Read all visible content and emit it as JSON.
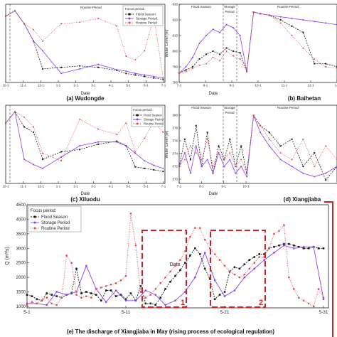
{
  "colors": {
    "flood": "#1a1a1a",
    "storage": "#8a3df0",
    "routine": "#e04a4a",
    "box": "#d42020",
    "axis": "#222222"
  },
  "legend_title": "Focus period:",
  "legend_items": [
    "Flood Season",
    "Storage Period",
    "Routine Period"
  ],
  "chart_data": [
    {
      "type": "line",
      "caption": "(a) Wudongde",
      "xlabel": "Date",
      "ylabel": "",
      "period_labels": [
        "Routine Period"
      ],
      "x_ticks": [
        "10-1",
        "11-1",
        "12-1",
        "1-1",
        "2-1",
        "3-1",
        "4-1",
        "5-1",
        "6-1",
        "7-1"
      ],
      "series": [
        {
          "name": "Flood Season",
          "x": [
            10.0,
            10.5,
            11.0,
            11.5,
            12.0,
            13.0,
            14.0,
            15.0,
            16.0,
            16.5,
            17.0,
            17.5,
            18.0,
            18.5
          ],
          "y": [
            0.88,
            0.95,
            0.78,
            0.55,
            0.18,
            0.2,
            0.22,
            0.2,
            0.16,
            0.12,
            0.1,
            0.08,
            0.06,
            0.04
          ]
        },
        {
          "name": "Storage Period",
          "x": [
            10.0,
            10.5,
            11.0,
            11.5,
            12.0,
            13.0,
            14.0,
            15.0,
            16.0,
            16.5,
            17.0,
            17.5,
            18.0,
            18.5
          ],
          "y": [
            0.88,
            0.95,
            0.78,
            0.55,
            0.42,
            0.12,
            0.18,
            0.24,
            0.17,
            0.15,
            0.12,
            0.1,
            0.08,
            0.06
          ]
        },
        {
          "name": "Routine Period",
          "x": [
            10.0,
            10.5,
            11.0,
            11.5,
            12.0,
            13.0,
            14.0,
            15.0,
            16.0,
            16.5,
            17.0,
            17.5,
            18.0,
            18.5
          ],
          "y": [
            0.88,
            0.95,
            0.78,
            0.7,
            0.55,
            0.78,
            0.8,
            0.85,
            0.75,
            0.35,
            0.3,
            0.42,
            0.88,
            0.06
          ]
        }
      ]
    },
    {
      "type": "line",
      "caption": "(b) Baihetan",
      "xlabel": "Date",
      "ylabel": "Water Level (m)",
      "period_labels": [
        "Flood Season",
        "Storage",
        "Period",
        "Routine Period"
      ],
      "y_ticks": [
        "780",
        "790",
        "800",
        "810",
        "820",
        "830"
      ],
      "ylim": [
        780,
        830
      ],
      "x_ticks": [
        "7-1",
        "8-1",
        "9-1",
        "10-1",
        "11-1",
        "12-1",
        "1-1"
      ],
      "series": [
        {
          "name": "Flood Season",
          "x": [
            0,
            0.3,
            0.6,
            0.9,
            1.2,
            1.5,
            1.8,
            2.1,
            2.4,
            2.7,
            3.0,
            3.3,
            3.6,
            4.0,
            4.5,
            5.0,
            5.5,
            6.0,
            6.5,
            7.0
          ],
          "y": [
            786,
            788,
            790,
            795,
            798,
            800,
            798,
            802,
            800,
            799,
            787,
            825,
            824,
            823,
            820,
            816,
            812,
            792,
            792,
            790
          ]
        },
        {
          "name": "Storage Period",
          "x": [
            0,
            0.3,
            0.6,
            0.9,
            1.2,
            1.5,
            1.8,
            2.1,
            2.4,
            2.7,
            3.0,
            3.3,
            3.6,
            4.0,
            4.5,
            5.0,
            5.5,
            6.0,
            6.5,
            7.0
          ],
          "y": [
            786,
            790,
            796,
            805,
            810,
            814,
            812,
            817,
            815,
            810,
            787,
            825,
            824,
            823,
            822,
            821,
            820,
            819,
            818,
            817
          ]
        },
        {
          "name": "Routine Period",
          "x": [
            0,
            0.3,
            0.6,
            0.9,
            1.2,
            1.5,
            1.8,
            2.1,
            2.4,
            2.7,
            3.0,
            3.3,
            3.6,
            4.0,
            4.5,
            5.0,
            5.5,
            6.0,
            6.5,
            7.0
          ],
          "y": [
            786,
            787,
            789,
            791,
            792,
            796,
            794,
            800,
            797,
            795,
            787,
            825,
            824,
            823,
            818,
            810,
            802,
            795,
            790,
            789
          ]
        }
      ]
    },
    {
      "type": "line",
      "caption": "(c) Xiluodu",
      "xlabel": "Date",
      "ylabel": "",
      "period_labels": [],
      "x_ticks": [
        "10-1",
        "11-1",
        "12-1",
        "1-1",
        "2-1",
        "3-1",
        "4-1",
        "5-1",
        "6-1",
        "7-1"
      ],
      "series": [
        {
          "name": "Flood Season",
          "x": [
            10.0,
            10.5,
            11.0,
            11.5,
            12.0,
            13.0,
            14.0,
            15.0,
            16.0,
            16.5,
            17.0,
            17.5,
            18.0,
            18.5
          ],
          "y": [
            0.8,
            0.95,
            0.75,
            0.68,
            0.32,
            0.42,
            0.45,
            0.52,
            0.56,
            0.5,
            0.22,
            0.2,
            0.18,
            0.16
          ]
        },
        {
          "name": "Storage Period",
          "x": [
            10.0,
            10.5,
            11.0,
            11.5,
            12.0,
            13.0,
            14.0,
            15.0,
            16.0,
            16.5,
            17.0,
            17.5,
            18.0,
            18.5
          ],
          "y": [
            0.8,
            0.95,
            0.32,
            0.25,
            0.2,
            0.35,
            0.5,
            0.55,
            0.55,
            0.5,
            0.4,
            0.3,
            0.24,
            0.2
          ]
        },
        {
          "name": "Routine Period",
          "x": [
            10.0,
            10.5,
            11.0,
            11.5,
            12.0,
            13.0,
            14.0,
            15.0,
            16.0,
            16.5,
            17.0,
            17.5,
            18.0,
            18.5
          ],
          "y": [
            0.8,
            0.95,
            0.88,
            0.75,
            0.4,
            0.3,
            0.85,
            0.72,
            0.65,
            0.8,
            0.42,
            0.6,
            0.82,
            0.68
          ]
        }
      ]
    },
    {
      "type": "line",
      "caption": "(d) Xiangjiaba",
      "xlabel": "Date",
      "ylabel": "Water Level (m)",
      "period_labels": [
        "Flood Season",
        "Storage",
        "Period",
        "Routine Period"
      ],
      "y_ticks": [
        "370",
        "372",
        "374",
        "376",
        "378",
        "380"
      ],
      "ylim": [
        369.5,
        381
      ],
      "x_ticks": [
        "7-1",
        "8-1",
        "9-1",
        "10-1"
      ],
      "series": [
        {
          "name": "Flood Season",
          "x": [
            0,
            0.25,
            0.5,
            0.75,
            1.0,
            1.25,
            1.5,
            1.75,
            2.0,
            2.25,
            2.5,
            2.75,
            3.0,
            3.3,
            3.6,
            4.0,
            4.5,
            5.0,
            5.5,
            6.0,
            6.5,
            7.0
          ],
          "y": [
            372,
            376,
            373,
            378,
            372,
            377,
            371,
            375,
            373,
            376,
            372,
            375,
            371,
            379.5,
            378,
            377,
            375,
            376,
            372,
            374,
            370,
            372
          ]
        },
        {
          "name": "Storage Period",
          "x": [
            0,
            0.25,
            0.5,
            0.75,
            1.0,
            1.25,
            1.5,
            1.75,
            2.0,
            2.25,
            2.5,
            2.75,
            3.0,
            3.3,
            3.6,
            4.0,
            4.5,
            5.0,
            5.5,
            6.0,
            6.5,
            7.0
          ],
          "y": [
            372,
            374,
            371,
            375,
            372,
            373,
            371,
            374,
            372,
            373,
            371,
            372,
            370.5,
            379.5,
            377,
            375,
            373,
            372,
            371,
            370.5,
            371,
            372
          ]
        },
        {
          "name": "Routine Period",
          "x": [
            0,
            0.25,
            0.5,
            0.75,
            1.0,
            1.25,
            1.5,
            1.75,
            2.0,
            2.25,
            2.5,
            2.75,
            3.0,
            3.3,
            3.6,
            4.0,
            4.5,
            5.0,
            5.5,
            6.0,
            6.5,
            7.0
          ],
          "y": [
            372,
            373,
            375,
            374,
            373,
            376,
            372,
            374,
            373,
            374,
            372,
            373,
            371,
            379.5,
            378,
            376,
            374,
            373,
            376,
            372,
            375,
            373
          ]
        }
      ]
    },
    {
      "type": "line",
      "caption": "(e) The discharge of Xiangjiaba in May (rising process of ecological regulation)",
      "xlabel": "Date",
      "ylabel": "Q (m³/s)",
      "legend_title": "Focus period:",
      "ylim": [
        950,
        4500
      ],
      "y_ticks": [
        "1000",
        "1500",
        "2000",
        "2500",
        "3000",
        "3500",
        "4000",
        "4500"
      ],
      "x_ticks": [
        "5-1",
        "5-11",
        "5-21",
        "5-31"
      ],
      "box_labels": [
        "1",
        "2"
      ],
      "series": [
        {
          "name": "Flood Season",
          "x": [
            1,
            1.5,
            2,
            2.5,
            3,
            3.5,
            4,
            4.5,
            5,
            5.5,
            6,
            6.5,
            7,
            7.5,
            8,
            8.5,
            9,
            9.5,
            10,
            10.5,
            11,
            11.5,
            12,
            12.5,
            13,
            13.5,
            14,
            14.5,
            15,
            15.5,
            16,
            16.5,
            17,
            17.5,
            18,
            18.5,
            19,
            19.5,
            20,
            20.5,
            21,
            21.5,
            22,
            22.5,
            23,
            23.5,
            24,
            24.5,
            25,
            25.5,
            26,
            26.5,
            27,
            27.5,
            28,
            28.5,
            29,
            29.5,
            30,
            30.5,
            31
          ],
          "y": [
            1400,
            1350,
            1250,
            1200,
            1450,
            1400,
            1350,
            1300,
            1400,
            1450,
            2300,
            1450,
            1500,
            1450,
            1400,
            1200,
            1550,
            1550,
            1350,
            1400,
            1250,
            1450,
            1200,
            1700,
            1100,
            1100,
            1050,
            1300,
            1600,
            1850,
            2050,
            2250,
            2500,
            2750,
            3000,
            2800,
            2300,
            1950,
            1250,
            1400,
            1500,
            2200,
            2350,
            2300,
            2450,
            2600,
            2700,
            2800,
            2800,
            3000,
            3050,
            3100,
            3150,
            3150,
            3100,
            3050,
            3000,
            3000,
            3050,
            3000,
            3000
          ]
        },
        {
          "name": "Storage Period",
          "x": [
            1,
            2,
            3,
            4,
            5,
            6,
            7,
            8,
            9,
            10,
            11,
            12,
            13,
            14,
            15,
            16,
            17,
            18,
            19,
            20,
            21,
            22,
            23,
            24,
            25,
            26,
            27,
            28,
            29,
            30,
            31
          ],
          "y": [
            1100,
            1100,
            1050,
            1500,
            1400,
            1500,
            2400,
            1600,
            1150,
            1550,
            1200,
            1200,
            1550,
            1400,
            1050,
            1200,
            1500,
            2000,
            2850,
            1900,
            1350,
            1550,
            2000,
            2300,
            2600,
            2850,
            3100,
            3000,
            3050,
            3050,
            1250
          ]
        },
        {
          "name": "Routine Period",
          "x": [
            1,
            1.5,
            2,
            2.5,
            3,
            3.5,
            4,
            4.5,
            5,
            5.5,
            6,
            6.5,
            7,
            7.5,
            8,
            8.5,
            9,
            9.5,
            10,
            10.5,
            11,
            11.5,
            12,
            12.5,
            13,
            13.5,
            14,
            14.5,
            15,
            15.5,
            16,
            16.5,
            17,
            17.5,
            18,
            18.5,
            19,
            19.5,
            20,
            20.5,
            21,
            21.5,
            22,
            22.5,
            23,
            23.5,
            24,
            24.5,
            25,
            25.5,
            26,
            26.5,
            27,
            27.5,
            28,
            28.5,
            29,
            29.5,
            30,
            30.5,
            31
          ],
          "y": [
            1050,
            1150,
            1100,
            1200,
            1300,
            1100,
            1050,
            1300,
            2750,
            2500,
            1400,
            1300,
            1350,
            1300,
            1600,
            1650,
            1700,
            1750,
            1800,
            1900,
            2050,
            4200,
            3100,
            1500,
            1300,
            1400,
            1600,
            1800,
            2000,
            2200,
            2400,
            2600,
            2900,
            3400,
            3700,
            3700,
            3300,
            3000,
            2800,
            2600,
            2400,
            2200,
            2100,
            2000,
            2100,
            2300,
            2500,
            2700,
            2700,
            3000,
            3500,
            3600,
            3800,
            2000,
            1600,
            1300,
            1200,
            1100,
            1000,
            1600,
            1300
          ]
        }
      ]
    }
  ]
}
